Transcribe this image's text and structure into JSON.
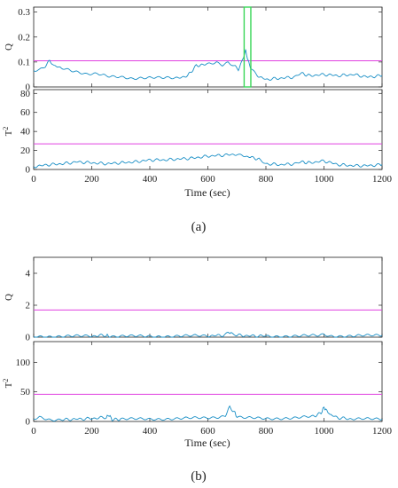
{
  "figure": {
    "colors": {
      "series": "#1a8fc6",
      "threshold": "#e040e0",
      "highlight": "#39d657",
      "axis": "#222222"
    },
    "panels": [
      {
        "caption": "(a)",
        "xlabel": "Time (sec)",
        "xticks": [
          "0",
          "200",
          "400",
          "600",
          "800",
          "1000",
          "1200"
        ]
      },
      {
        "caption": "(b)",
        "xlabel": "Time (sec)",
        "xticks": [
          "0",
          "200",
          "400",
          "600",
          "800",
          "1000",
          "1200"
        ]
      }
    ]
  },
  "chart_data": [
    {
      "type": "line",
      "panel": "a",
      "ylabel": "Q",
      "xlim": [
        0,
        1200
      ],
      "ylim": [
        0,
        0.32
      ],
      "yticks": [
        "0",
        "0.1",
        "0.2",
        "0.3"
      ],
      "threshold": 0.105,
      "highlight_x": [
        725,
        748
      ],
      "x": [
        0,
        20,
        40,
        55,
        70,
        100,
        140,
        180,
        220,
        260,
        300,
        340,
        380,
        420,
        460,
        500,
        530,
        560,
        590,
        610,
        630,
        650,
        670,
        690,
        705,
        720,
        730,
        740,
        750,
        770,
        800,
        850,
        900,
        920,
        950,
        1000,
        1050,
        1100,
        1150,
        1200
      ],
      "values": [
        0.065,
        0.07,
        0.085,
        0.105,
        0.085,
        0.075,
        0.06,
        0.05,
        0.055,
        0.045,
        0.04,
        0.03,
        0.035,
        0.04,
        0.04,
        0.035,
        0.045,
        0.085,
        0.09,
        0.095,
        0.1,
        0.09,
        0.1,
        0.085,
        0.07,
        0.11,
        0.145,
        0.1,
        0.07,
        0.045,
        0.03,
        0.035,
        0.04,
        0.055,
        0.045,
        0.05,
        0.045,
        0.05,
        0.04,
        0.045
      ]
    },
    {
      "type": "line",
      "panel": "a",
      "ylabel": "T2",
      "xlim": [
        0,
        1200
      ],
      "ylim": [
        0,
        84
      ],
      "yticks": [
        "0",
        "20",
        "40",
        "60",
        "80"
      ],
      "threshold": 27,
      "x": [
        0,
        50,
        100,
        150,
        200,
        250,
        300,
        350,
        400,
        450,
        500,
        550,
        600,
        650,
        700,
        720,
        750,
        780,
        800,
        850,
        900,
        920,
        950,
        1000,
        1050,
        1100,
        1150,
        1200
      ],
      "values": [
        3,
        5,
        6,
        8,
        7,
        6,
        7,
        8,
        10,
        10,
        11,
        12,
        14,
        15,
        16,
        14,
        13,
        10,
        6,
        5,
        6,
        8,
        7,
        9,
        5,
        4,
        4,
        5
      ]
    },
    {
      "type": "line",
      "panel": "b",
      "ylabel": "Q",
      "xlim": [
        0,
        1200
      ],
      "ylim": [
        0,
        5
      ],
      "yticks": [
        "0",
        "2",
        "4"
      ],
      "threshold": 1.7,
      "x": [
        0,
        100,
        200,
        250,
        260,
        300,
        400,
        500,
        600,
        650,
        670,
        680,
        700,
        750,
        800,
        900,
        980,
        1000,
        1020,
        1100,
        1200
      ],
      "values": [
        0.05,
        0.05,
        0.07,
        0.12,
        0.06,
        0.06,
        0.05,
        0.07,
        0.08,
        0.12,
        0.3,
        0.25,
        0.12,
        0.08,
        0.07,
        0.06,
        0.1,
        0.18,
        0.08,
        0.07,
        0.12
      ]
    },
    {
      "type": "line",
      "panel": "b",
      "ylabel": "T2",
      "xlim": [
        0,
        1200
      ],
      "ylim": [
        0,
        135
      ],
      "yticks": [
        "0",
        "50",
        "100"
      ],
      "threshold": 46,
      "x": [
        0,
        20,
        60,
        100,
        150,
        200,
        250,
        260,
        270,
        300,
        400,
        500,
        600,
        640,
        660,
        675,
        690,
        700,
        720,
        800,
        900,
        960,
        990,
        1000,
        1010,
        1020,
        1050,
        1100,
        1200
      ],
      "values": [
        4,
        8,
        3,
        3,
        4,
        5,
        7,
        11,
        3,
        4,
        4,
        5,
        6,
        8,
        10,
        24,
        17,
        8,
        6,
        5,
        6,
        8,
        14,
        24,
        18,
        12,
        6,
        4,
        4
      ]
    }
  ]
}
